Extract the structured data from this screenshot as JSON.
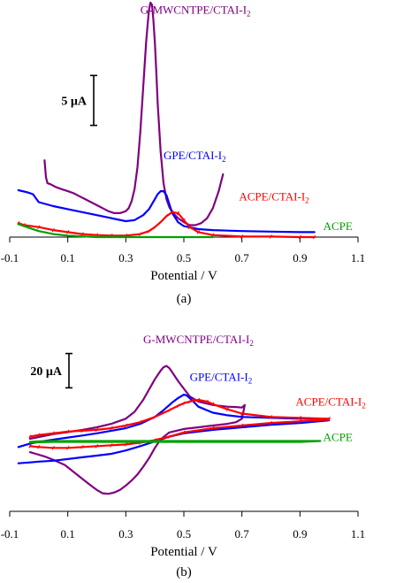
{
  "chart_data": [
    {
      "type": "line",
      "panel_label": "(a)",
      "xlabel": "Potential / V",
      "ylabel": "",
      "xlim": [
        -0.1,
        1.1
      ],
      "x_ticks": [
        "-0.1",
        "0.1",
        "0.3",
        "0.5",
        "0.7",
        "0.9",
        "1.1"
      ],
      "x_tick_values": [
        -0.1,
        0.1,
        0.3,
        0.5,
        0.7,
        0.9,
        1.1
      ],
      "ylim": [
        0,
        23.5
      ],
      "grid": false,
      "legend": "inline labels",
      "scale_bar": {
        "label": "5 µA",
        "value": 5,
        "bottom": 11.2
      },
      "series": [
        {
          "name": "G-MWCNTPE/CTAI-I2",
          "label_main": "G-MWCNTPE/CTAI-I",
          "label_sub": "2",
          "label_anchor": [
            0.35,
            22.4
          ],
          "color": "#800080",
          "x": [
            0.02,
            0.025,
            0.03,
            0.04,
            0.06,
            0.08,
            0.1,
            0.12,
            0.14,
            0.16,
            0.18,
            0.2,
            0.22,
            0.24,
            0.26,
            0.28,
            0.3,
            0.31,
            0.32,
            0.33,
            0.34,
            0.35,
            0.36,
            0.37,
            0.375,
            0.38,
            0.385,
            0.39,
            0.395,
            0.4,
            0.405,
            0.41,
            0.42,
            0.43,
            0.44,
            0.45,
            0.46,
            0.47,
            0.48,
            0.5,
            0.52,
            0.54,
            0.56,
            0.58,
            0.6,
            0.62,
            0.635
          ],
          "y": [
            7.7,
            6.0,
            5.4,
            5.3,
            5.0,
            4.8,
            4.6,
            4.4,
            4.1,
            3.8,
            3.5,
            3.2,
            2.9,
            2.6,
            2.4,
            2.4,
            2.6,
            2.9,
            3.6,
            4.8,
            7.0,
            10.5,
            15.0,
            19.5,
            21.3,
            22.8,
            23.5,
            23.3,
            21.8,
            19.5,
            16.6,
            13.4,
            8.6,
            5.4,
            3.8,
            3.0,
            2.5,
            2.2,
            1.9,
            1.5,
            1.2,
            1.2,
            1.4,
            1.9,
            2.9,
            4.6,
            6.3
          ]
        },
        {
          "name": "GPE/CTAI-I2",
          "label_main": "GPE/CTAI-I",
          "label_sub": "2",
          "label_anchor": [
            0.43,
            7.8
          ],
          "color": "#0000ff",
          "x": [
            -0.07,
            -0.04,
            -0.02,
            0.0,
            0.05,
            0.1,
            0.15,
            0.2,
            0.25,
            0.3,
            0.33,
            0.36,
            0.38,
            0.4,
            0.41,
            0.42,
            0.43,
            0.44,
            0.45,
            0.46,
            0.48,
            0.5,
            0.55,
            0.6,
            0.7,
            0.8,
            0.9,
            0.95
          ],
          "y": [
            4.7,
            4.5,
            4.3,
            3.5,
            3.1,
            2.8,
            2.5,
            2.2,
            1.9,
            1.6,
            1.7,
            2.2,
            2.8,
            3.8,
            4.3,
            4.6,
            4.6,
            4.2,
            3.3,
            2.4,
            1.5,
            1.1,
            0.8,
            0.7,
            0.6,
            0.55,
            0.5,
            0.5
          ]
        },
        {
          "name": "ACPE/CTAI-I2",
          "label_main": "ACPE/CTAI-I",
          "label_sub": "2",
          "label_anchor": [
            0.69,
            3.7
          ],
          "color": "#ff0000",
          "x": [
            -0.07,
            -0.05,
            0.0,
            0.05,
            0.1,
            0.15,
            0.2,
            0.25,
            0.3,
            0.35,
            0.38,
            0.4,
            0.42,
            0.44,
            0.46,
            0.48,
            0.5,
            0.52,
            0.55,
            0.6,
            0.7,
            0.8,
            0.9,
            0.95
          ],
          "y": [
            1.4,
            1.2,
            1.0,
            0.7,
            0.5,
            0.3,
            0.2,
            0.15,
            0.15,
            0.3,
            0.6,
            1.0,
            1.5,
            2.1,
            2.5,
            2.4,
            1.7,
            1.0,
            0.5,
            0.2,
            0.05,
            0.05,
            0.0,
            0.0
          ],
          "hatch": true
        },
        {
          "name": "ACPE",
          "label_main": "ACPE",
          "label_sub": "",
          "label_anchor": [
            0.98,
            0.7
          ],
          "color": "#00a000",
          "x": [
            -0.07,
            -0.03,
            0.0,
            0.05,
            0.1,
            0.2,
            0.3,
            0.4,
            0.5,
            0.6
          ],
          "y": [
            1.3,
            0.9,
            0.6,
            0.3,
            0.15,
            0.0,
            0.0,
            0.0,
            0.0,
            0.0
          ]
        }
      ]
    },
    {
      "type": "line",
      "panel_label": "(b)",
      "xlabel": "Potential / V",
      "ylabel": "",
      "xlim": [
        -0.1,
        1.1
      ],
      "x_ticks": [
        "-0.1",
        "0.1",
        "0.3",
        "0.5",
        "0.7",
        "0.9",
        "1.1"
      ],
      "x_tick_values": [
        -0.1,
        0.1,
        0.3,
        0.5,
        0.7,
        0.9,
        1.1
      ],
      "ylim": [
        -40,
        75
      ],
      "grid": false,
      "legend": "inline labels",
      "scale_bar": {
        "label": "20 µA",
        "value": 20,
        "bottom": 32
      },
      "series": [
        {
          "name": "G-MWCNTPE/CTAI-I2",
          "label_main": "G-MWCNTPE/CTAI-I",
          "label_sub": "2",
          "label_anchor": [
            0.36,
            58
          ],
          "color": "#800080",
          "x": [
            -0.03,
            0.0,
            0.05,
            0.1,
            0.15,
            0.2,
            0.25,
            0.3,
            0.33,
            0.36,
            0.38,
            0.4,
            0.42,
            0.43,
            0.44,
            0.45,
            0.46,
            0.48,
            0.5,
            0.52,
            0.55,
            0.6,
            0.65,
            0.68,
            0.7,
            0.71,
            0.7,
            0.68,
            0.65,
            0.6,
            0.55,
            0.5,
            0.45,
            0.42,
            0.4,
            0.38,
            0.36,
            0.34,
            0.32,
            0.3,
            0.28,
            0.26,
            0.24,
            0.22,
            0.2,
            0.18,
            0.15,
            0.12,
            0.09,
            0.05,
            0.02,
            -0.01,
            -0.03
          ],
          "y": [
            2.3,
            3.3,
            5.0,
            6.2,
            7.5,
            9.0,
            11.0,
            14.0,
            18.0,
            25.0,
            31.0,
            37.0,
            42.0,
            44.0,
            44.8,
            43.5,
            41.0,
            36.0,
            31.5,
            27.0,
            24.0,
            22.0,
            21.0,
            20.8,
            20.5,
            22.0,
            14.0,
            12.0,
            11.0,
            10.0,
            9.0,
            8.0,
            6.0,
            2.0,
            -3.0,
            -9.0,
            -14.0,
            -18.5,
            -22.0,
            -25.0,
            -27.5,
            -29.0,
            -29.8,
            -29.5,
            -27.5,
            -25.0,
            -21.0,
            -17.0,
            -13.0,
            -10.0,
            -8.0,
            -6.5,
            -5.5
          ]
        },
        {
          "name": "GPE/CTAI-I2",
          "label_main": "GPE/CTAI-I",
          "label_sub": "2",
          "label_anchor": [
            0.52,
            36
          ],
          "color": "#0000ff",
          "x": [
            -0.07,
            -0.03,
            0.0,
            0.05,
            0.1,
            0.15,
            0.2,
            0.25,
            0.3,
            0.35,
            0.4,
            0.43,
            0.46,
            0.48,
            0.5,
            0.51,
            0.53,
            0.55,
            0.6,
            0.65,
            0.7,
            0.8,
            0.9,
            0.98,
            1.0,
            0.9,
            0.8,
            0.7,
            0.6,
            0.5,
            0.45,
            0.4,
            0.35,
            0.3,
            0.25,
            0.2,
            0.15,
            0.1,
            0.05,
            0.0,
            -0.03,
            -0.07
          ],
          "y": [
            -2.5,
            -0.5,
            0.5,
            1.8,
            3.0,
            4.2,
            5.5,
            7.0,
            8.5,
            11.0,
            15.0,
            19.0,
            23.5,
            26.0,
            28.0,
            27.5,
            24.5,
            21.0,
            17.5,
            16.0,
            15.0,
            14.5,
            14.0,
            14.0,
            13.0,
            11.5,
            10.5,
            9.0,
            7.5,
            5.5,
            3.5,
            0.8,
            -2.0,
            -4.5,
            -6.5,
            -7.5,
            -8.5,
            -9.5,
            -10.5,
            -11.0,
            -11.5,
            -12.0
          ]
        },
        {
          "name": "ACPE/CTAI-I2",
          "label_main": "ACPE/CTAI-I",
          "label_sub": "2",
          "label_anchor": [
            0.885,
            21.5
          ],
          "color": "#ff0000",
          "x": [
            -0.03,
            0.0,
            0.05,
            0.1,
            0.15,
            0.2,
            0.25,
            0.3,
            0.35,
            0.4,
            0.45,
            0.48,
            0.5,
            0.52,
            0.55,
            0.58,
            0.6,
            0.65,
            0.7,
            0.8,
            0.9,
            1.0,
            1.0,
            0.9,
            0.8,
            0.7,
            0.6,
            0.5,
            0.45,
            0.4,
            0.35,
            0.3,
            0.25,
            0.2,
            0.15,
            0.1,
            0.05,
            0.0,
            -0.03
          ],
          "y": [
            3.5,
            4.5,
            5.5,
            6.5,
            7.0,
            7.5,
            8.5,
            10.0,
            12.0,
            15.0,
            19.0,
            21.5,
            23.0,
            24.0,
            25.0,
            24.0,
            22.5,
            19.5,
            17.0,
            15.0,
            14.5,
            14.0,
            13.5,
            12.5,
            11.5,
            10.0,
            8.5,
            6.0,
            3.5,
            1.5,
            0.0,
            -1.0,
            -1.5,
            -2.0,
            -2.5,
            -3.0,
            -3.0,
            -2.5,
            -2.0
          ],
          "hatch": true
        },
        {
          "name": "ACPE",
          "label_main": "ACPE",
          "label_sub": "",
          "label_anchor": [
            0.98,
            1.0
          ],
          "color": "#00a000",
          "x": [
            -0.03,
            0.0,
            0.05,
            0.1,
            0.2,
            0.3,
            0.4,
            0.5,
            0.6,
            0.7,
            0.8,
            0.9,
            0.97,
            0.9,
            0.8,
            0.7,
            0.6,
            0.5,
            0.4,
            0.3,
            0.2,
            0.1,
            0.05,
            0.0,
            -0.03
          ],
          "y": [
            0.5,
            0.8,
            1.0,
            1.0,
            1.0,
            1.0,
            1.0,
            1.0,
            1.0,
            1.0,
            1.0,
            1.0,
            1.0,
            0.5,
            0.5,
            0.5,
            0.5,
            0.5,
            0.5,
            0.5,
            0.5,
            0.5,
            0.5,
            0.3,
            0.0
          ]
        }
      ]
    }
  ]
}
